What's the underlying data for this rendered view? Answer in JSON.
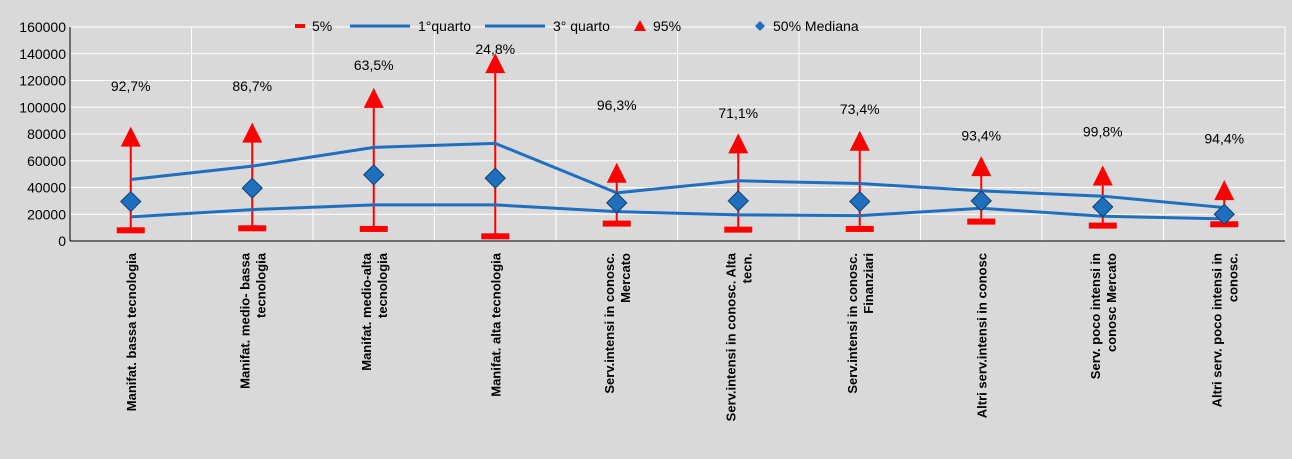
{
  "chart_data": {
    "type": "line",
    "title": "",
    "xlabel": "",
    "ylabel": "",
    "ylim": [
      0,
      160000
    ],
    "yticks": [
      "0",
      "20000",
      "40000",
      "60000",
      "80000",
      "100000",
      "120000",
      "140000",
      "160000"
    ],
    "categories": [
      [
        "Manifat. bassa tecnologia"
      ],
      [
        "Manifat. medio- bassa",
        "tecnologia"
      ],
      [
        "Manifat. medio-alta",
        "tecnologia"
      ],
      [
        "Manifat. alta tecnologia"
      ],
      [
        "Serv.intensi in conosc.",
        "Mercato"
      ],
      [
        "Serv.intensi in conosc. Alta",
        "tecn."
      ],
      [
        "Serv.intensi in conosc.",
        "Finanziari"
      ],
      [
        "Altri serv.intensi in conosc"
      ],
      [
        "Serv. poco intensi in",
        "conosc Mercato"
      ],
      [
        "Altri serv. poco intensi in",
        "conosc."
      ]
    ],
    "series": [
      {
        "name": "5%",
        "values": [
          8000,
          9500,
          9000,
          3500,
          13000,
          8500,
          9000,
          14500,
          11500,
          12500
        ],
        "color": "#ff0000"
      },
      {
        "name": "1°quarto",
        "values": [
          18000,
          23500,
          27000,
          27000,
          22000,
          19500,
          19000,
          24500,
          18500,
          16500
        ],
        "color": "#1f6fbf"
      },
      {
        "name": "3° quarto",
        "values": [
          46000,
          56000,
          70000,
          73000,
          36000,
          45000,
          43000,
          37500,
          33500,
          25000
        ],
        "color": "#1f6fbf"
      },
      {
        "name": "95%",
        "values": [
          78000,
          81000,
          107000,
          133000,
          51000,
          73000,
          75000,
          56000,
          49000,
          38000
        ],
        "color": "#ff0000"
      },
      {
        "name": "50% Mediana",
        "values": [
          29500,
          39500,
          49500,
          47000,
          28500,
          30000,
          29500,
          30000,
          25500,
          20000
        ],
        "color": "#1f6fbf"
      }
    ],
    "annotations": [
      "92,7%",
      "86,7%",
      "63,5%",
      "24,8%",
      "96,3%",
      "71,1%",
      "73,4%",
      "93,4%",
      "99,8%",
      "94,4%"
    ],
    "annotation_values": [
      112000,
      112000,
      128000,
      140000,
      98000,
      92000,
      95000,
      75000,
      78000,
      73000
    ],
    "grid": true,
    "legend_position": "top"
  }
}
